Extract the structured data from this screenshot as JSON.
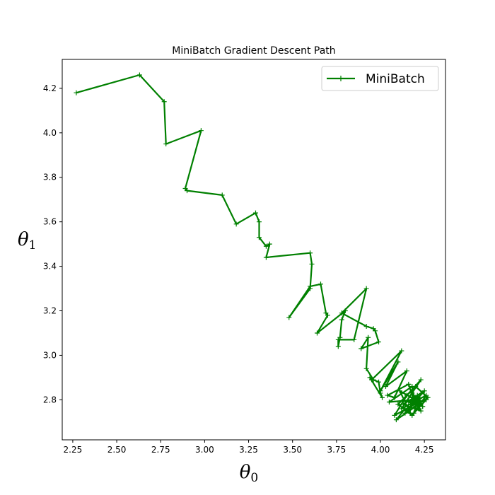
{
  "chart_data": {
    "type": "line",
    "title": "MiniBatch Gradient Descent Path",
    "xlabel_base": "θ",
    "xlabel_sub": "0",
    "ylabel_base": "θ",
    "ylabel_sub": "1",
    "xlim": [
      2.19,
      4.37
    ],
    "ylim": [
      2.62,
      4.33
    ],
    "xticks": [
      2.25,
      2.5,
      2.75,
      3.0,
      3.25,
      3.5,
      3.75,
      4.0,
      4.25
    ],
    "xtick_labels": [
      "2.25",
      "2.50",
      "2.75",
      "3.00",
      "3.25",
      "3.50",
      "3.75",
      "4.00",
      "4.25"
    ],
    "yticks": [
      2.8,
      3.0,
      3.2,
      3.4,
      3.6,
      3.8,
      4.0,
      4.2
    ],
    "ytick_labels": [
      "2.8",
      "3.0",
      "3.2",
      "3.4",
      "3.6",
      "3.8",
      "4.0",
      "4.2"
    ],
    "legend_position": "upper-right",
    "series": [
      {
        "name": "MiniBatch",
        "color": "#008000",
        "marker": "plus",
        "x": [
          2.27,
          2.63,
          2.77,
          2.78,
          2.98,
          2.89,
          2.9,
          3.1,
          3.18,
          3.29,
          3.31,
          3.31,
          3.35,
          3.37,
          3.35,
          3.6,
          3.61,
          3.6,
          3.48,
          3.6,
          3.66,
          3.69,
          3.7,
          3.64,
          3.8,
          3.78,
          3.77,
          3.76,
          3.76,
          3.85,
          3.92,
          3.78,
          3.92,
          3.96,
          3.97,
          3.99,
          3.89,
          3.93,
          3.92,
          3.96,
          3.99,
          4.0,
          4.01,
          3.94,
          3.95,
          4.12,
          4.0,
          4.1,
          4.03,
          4.15,
          4.08,
          4.04,
          4.16,
          4.19,
          4.05,
          4.18,
          4.2,
          4.09,
          4.14,
          4.17,
          4.11,
          4.22,
          4.08,
          4.15,
          4.23,
          4.12,
          4.26,
          4.18,
          4.1,
          4.2,
          4.27,
          4.14,
          4.21,
          4.16,
          4.25,
          4.13,
          4.23,
          4.18,
          4.24,
          4.16,
          4.22,
          4.19,
          4.26,
          4.17,
          4.21,
          4.24,
          4.19,
          4.22,
          4.18,
          4.23,
          4.2,
          4.21
        ],
        "y": [
          4.18,
          4.26,
          4.14,
          3.95,
          4.01,
          3.75,
          3.74,
          3.72,
          3.59,
          3.64,
          3.6,
          3.53,
          3.49,
          3.5,
          3.44,
          3.46,
          3.41,
          3.3,
          3.17,
          3.31,
          3.32,
          3.19,
          3.18,
          3.1,
          3.2,
          3.16,
          3.08,
          3.04,
          3.07,
          3.07,
          3.3,
          3.19,
          3.13,
          3.12,
          3.11,
          3.06,
          3.03,
          3.08,
          2.94,
          2.89,
          2.88,
          2.83,
          2.81,
          2.9,
          2.89,
          3.02,
          2.84,
          2.97,
          2.86,
          2.93,
          2.81,
          2.82,
          2.87,
          2.8,
          2.79,
          2.86,
          2.77,
          2.71,
          2.76,
          2.74,
          2.84,
          2.79,
          2.73,
          2.82,
          2.89,
          2.76,
          2.82,
          2.73,
          2.78,
          2.86,
          2.81,
          2.74,
          2.8,
          2.76,
          2.84,
          2.78,
          2.75,
          2.83,
          2.77,
          2.79,
          2.81,
          2.74,
          2.8,
          2.78,
          2.82,
          2.77,
          2.8,
          2.76,
          2.81,
          2.79,
          2.78,
          2.8
        ]
      }
    ]
  }
}
